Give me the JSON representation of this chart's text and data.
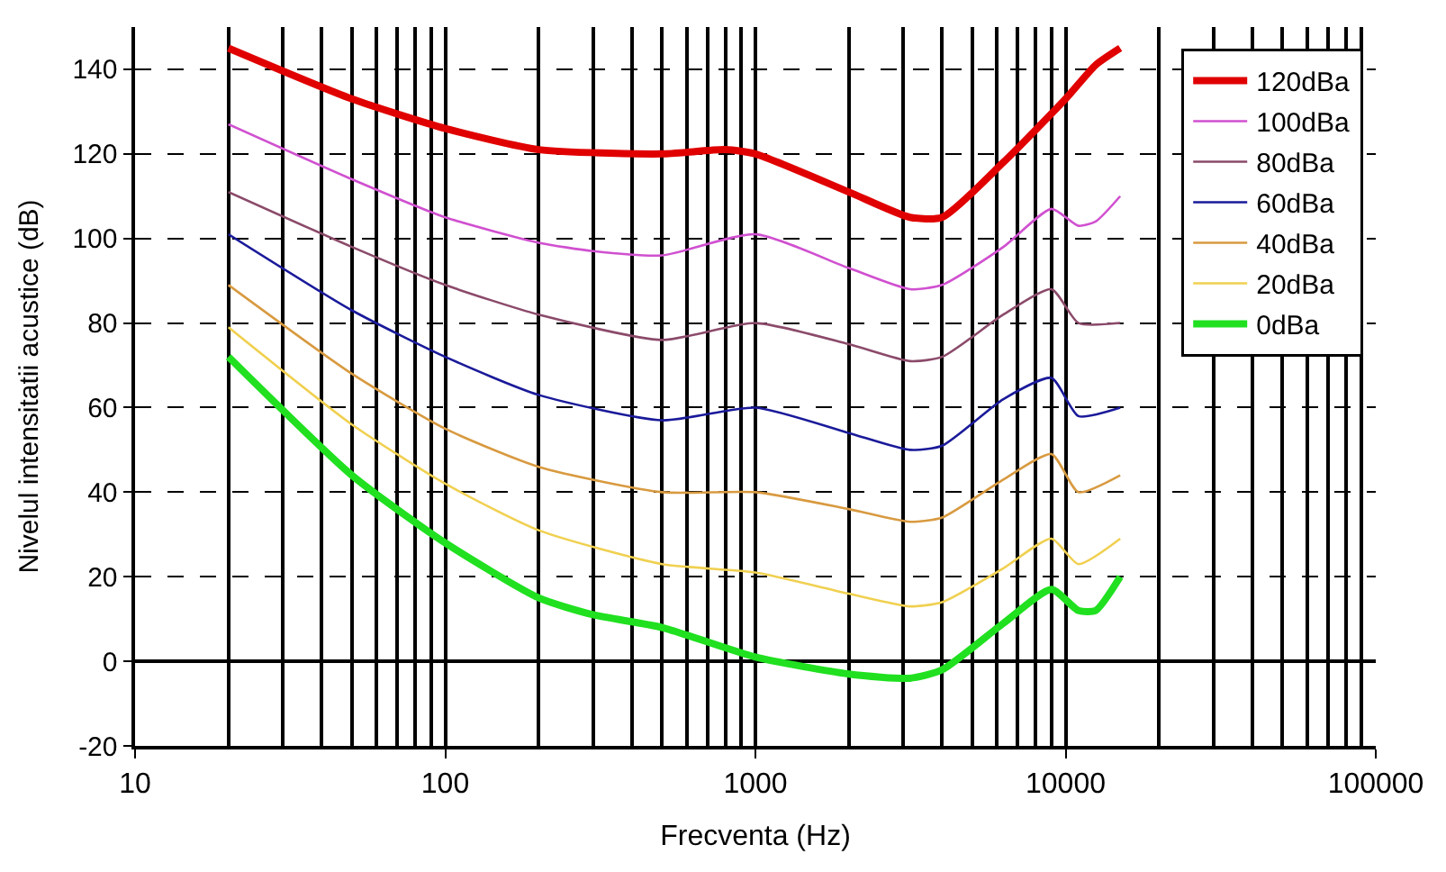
{
  "chart_data": {
    "type": "line",
    "xlabel": "Frecventa (Hz)",
    "ylabel": "Nivelul intensitatii acustice (dB)",
    "log": "x",
    "grid": true,
    "legend": "top right",
    "xlim": [
      10,
      100000
    ],
    "xticks": [
      10,
      100,
      1000,
      10000,
      100000
    ],
    "ylim": [
      -20,
      150
    ],
    "yticks": [
      -20,
      0,
      20,
      40,
      60,
      80,
      100,
      120,
      140
    ],
    "series": [
      {
        "name": "120dBa",
        "color": "#e00000",
        "x": [
          20,
          50,
          100,
          200,
          500,
          800,
          1000,
          2000,
          3150,
          4000,
          6300,
          10000,
          12500,
          15000
        ],
        "values": [
          145,
          133,
          126,
          121,
          120,
          121,
          120,
          111,
          105,
          105,
          118,
          133,
          141,
          145
        ]
      },
      {
        "name": "100dBa",
        "color": "#d050d0",
        "x": [
          20,
          50,
          100,
          200,
          300,
          500,
          1000,
          2000,
          3150,
          4000,
          6300,
          9000,
          11000,
          12500,
          15000
        ],
        "values": [
          127,
          114,
          105,
          99,
          97,
          96,
          101,
          93,
          88,
          89,
          98,
          107,
          103,
          104,
          110
        ]
      },
      {
        "name": "80dBa",
        "color": "#8b4a6a",
        "x": [
          20,
          50,
          100,
          200,
          500,
          1000,
          2000,
          3150,
          4000,
          6300,
          9000,
          11000,
          15000
        ],
        "values": [
          111,
          98,
          89,
          82,
          76,
          80,
          75,
          71,
          72,
          82,
          88,
          80,
          80
        ]
      },
      {
        "name": "60dBa",
        "color": "#1a1a9a",
        "x": [
          20,
          50,
          100,
          200,
          500,
          1000,
          2000,
          3150,
          4000,
          6300,
          9000,
          11000,
          15000
        ],
        "values": [
          101,
          83,
          72,
          63,
          57,
          60,
          54,
          50,
          51,
          62,
          67,
          58,
          60
        ]
      },
      {
        "name": "40dBa",
        "color": "#d89a40",
        "x": [
          20,
          50,
          100,
          200,
          500,
          1000,
          2000,
          3150,
          4000,
          6300,
          9000,
          11000,
          15000
        ],
        "values": [
          89,
          68,
          55,
          46,
          40,
          40,
          36,
          33,
          34,
          43,
          49,
          40,
          44
        ]
      },
      {
        "name": "20dBa",
        "color": "#f0d050",
        "x": [
          20,
          50,
          100,
          200,
          500,
          1000,
          2000,
          3150,
          4000,
          6300,
          9000,
          11000,
          15000
        ],
        "values": [
          79,
          56,
          42,
          31,
          23,
          21,
          16,
          13,
          14,
          22,
          29,
          23,
          29
        ]
      },
      {
        "name": "0dBa",
        "color": "#20e020",
        "x": [
          20,
          50,
          100,
          200,
          300,
          500,
          1000,
          2000,
          3150,
          4000,
          6300,
          9000,
          11000,
          12500,
          15000
        ],
        "values": [
          72,
          44,
          28,
          15,
          11,
          8,
          1,
          -3,
          -4,
          -2,
          9,
          17,
          12,
          12,
          20
        ]
      }
    ]
  }
}
